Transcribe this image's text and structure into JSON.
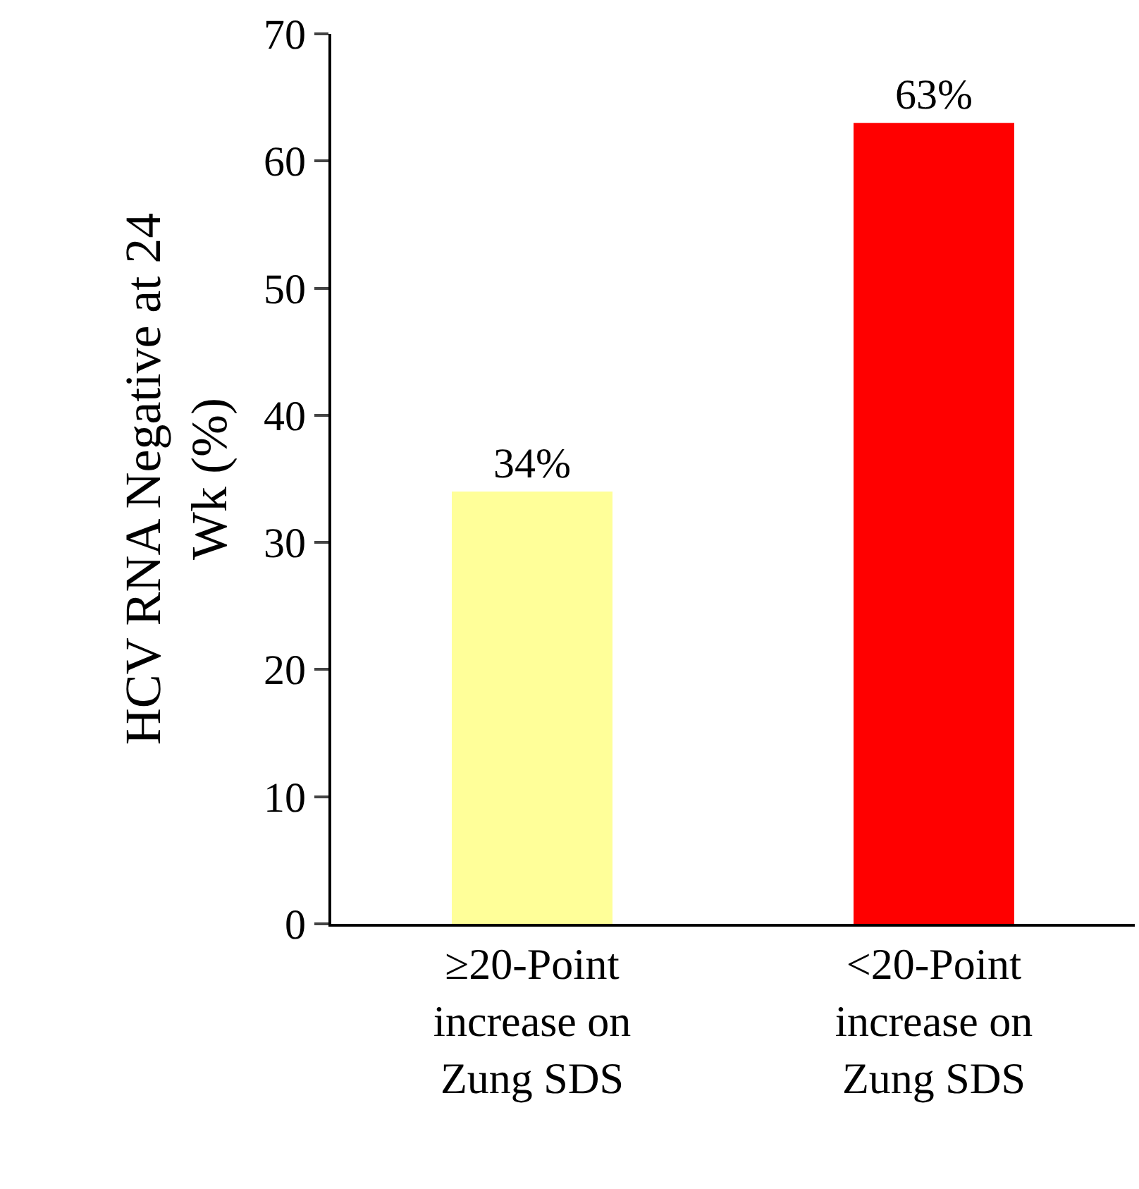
{
  "chart_data": {
    "type": "bar",
    "ylabel": "HCV RNA Negative at 24 Wk (%)",
    "categories": [
      "≥20-Point increase on Zung SDS",
      "<20-Point increase on Zung SDS"
    ],
    "values": [
      34,
      63
    ],
    "colors": [
      "#ffff99",
      "#ff0000"
    ],
    "value_labels": [
      "34%",
      "63%"
    ],
    "ylim": [
      0,
      70
    ],
    "yticks": [
      0,
      10,
      20,
      30,
      40,
      50,
      60,
      70
    ]
  }
}
